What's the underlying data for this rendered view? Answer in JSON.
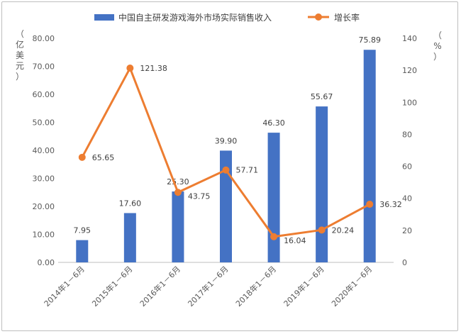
{
  "chart_data": {
    "type": "bar",
    "categories": [
      "2014年1－6月",
      "2015年1－6月",
      "2016年1－6月",
      "2017年1－6月",
      "2018年1－6月",
      "2019年1－6月",
      "2020年1－6月"
    ],
    "series": [
      {
        "name": "中国自主研发游戏海外市场实际销售收入",
        "type": "bar",
        "axis": "left",
        "color": "#4472c4",
        "values": [
          7.95,
          17.6,
          25.3,
          39.9,
          46.3,
          55.67,
          75.89
        ],
        "labels": [
          "7.95",
          "17.60",
          "25.30",
          "39.90",
          "46.30",
          "55.67",
          "75.89"
        ]
      },
      {
        "name": "增长率",
        "type": "line",
        "axis": "right",
        "color": "#ed7d31",
        "values": [
          65.65,
          121.38,
          43.75,
          57.71,
          16.04,
          20.24,
          36.32
        ],
        "labels": [
          "65.65",
          "121.38",
          "43.75",
          "57.71",
          "16.04",
          "20.24",
          "36.32"
        ]
      }
    ],
    "y_left": {
      "label": "（亿美元）",
      "ylim": [
        0,
        80
      ],
      "ticks": [
        "0.00",
        "10.00",
        "20.00",
        "30.00",
        "40.00",
        "50.00",
        "60.00",
        "70.00",
        "80.00"
      ]
    },
    "y_right": {
      "label": "（%）",
      "ylim": [
        0,
        140
      ],
      "ticks": [
        "0",
        "20",
        "40",
        "60",
        "80",
        "100",
        "120",
        "140"
      ]
    },
    "legend": "top",
    "grid": false
  }
}
